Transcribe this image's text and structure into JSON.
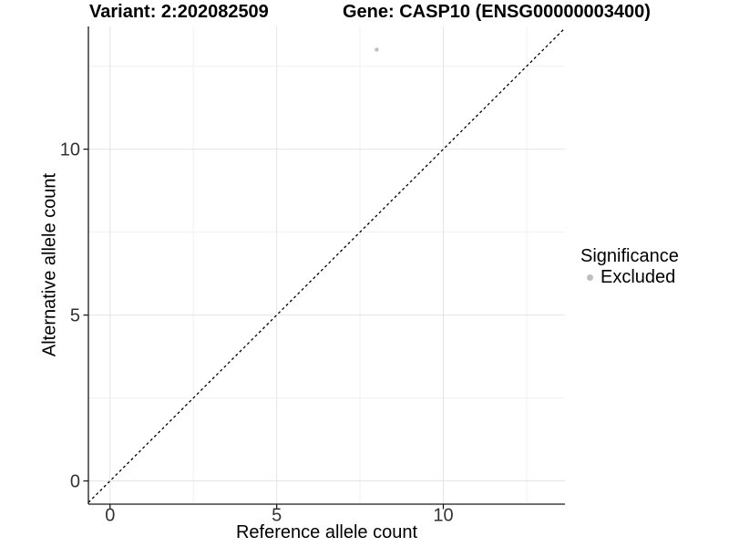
{
  "title": {
    "variant": "Variant: 2:202082509",
    "gene": "Gene: CASP10 (ENSG00000003400)"
  },
  "legend": {
    "title": "Significance",
    "entries": [
      {
        "label": "Excluded",
        "color": "#bebebe",
        "marker": "circle-icon"
      }
    ]
  },
  "chart_data": {
    "type": "scatter",
    "title": "Variant: 2:202082509    Gene: CASP10 (ENSG00000003400)",
    "xlabel": "Reference allele count",
    "ylabel": "Alternative allele count",
    "xlim": [
      -0.65,
      13.65
    ],
    "ylim": [
      -0.7,
      13.7
    ],
    "x_ticks": [
      0,
      5,
      10
    ],
    "y_ticks": [
      0,
      5,
      10
    ],
    "x_minor_ticks": [
      2.5,
      7.5,
      12.5
    ],
    "y_minor_ticks": [
      2.5,
      7.5,
      12.5
    ],
    "grid": "major+minor",
    "legend_position": "right",
    "series": [
      {
        "name": "Excluded",
        "color": "#bebebe",
        "marker_radius": 2.2,
        "points": [
          {
            "x": 8,
            "y": 13
          }
        ]
      }
    ],
    "reference_line": {
      "type": "abline",
      "slope": 1,
      "intercept": 0,
      "style": "dashed",
      "color": "#000000"
    }
  },
  "colors": {
    "background": "#ffffff",
    "grid_major": "#e4e4e4",
    "grid_minor": "#f1f1f1",
    "axis": "#1a1a1a",
    "tick_text": "#333333",
    "excluded": "#bebebe"
  }
}
